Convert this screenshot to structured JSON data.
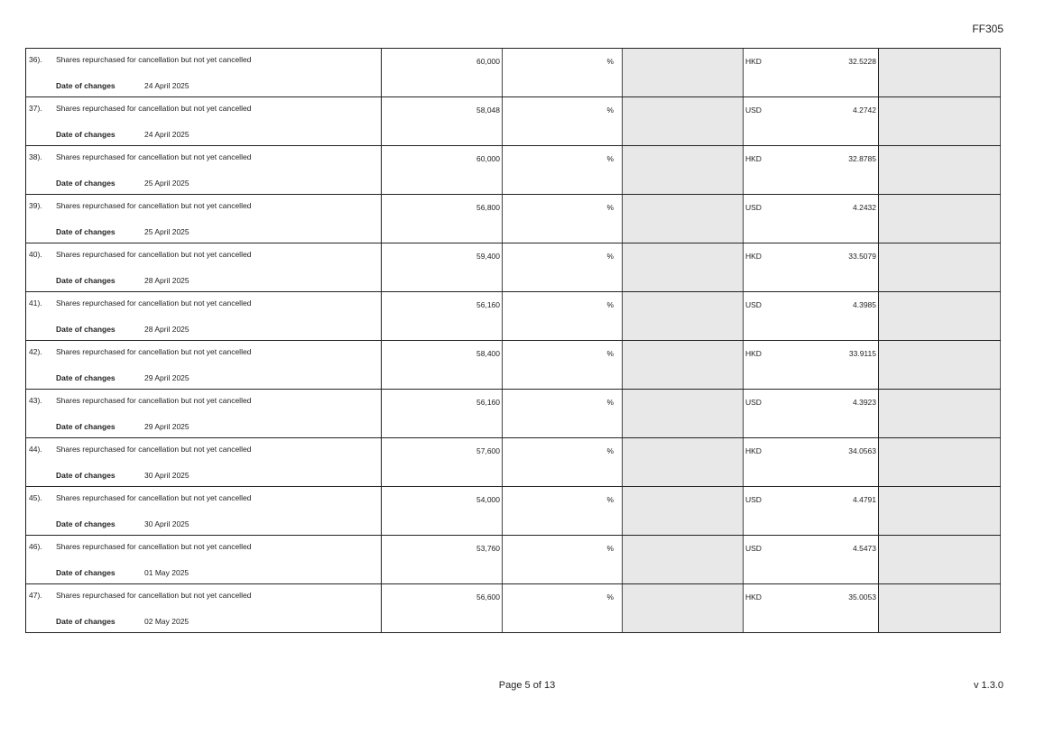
{
  "form_code": "FF305",
  "date_label": "Date of changes",
  "percent_symbol": "%",
  "rows": [
    {
      "no": "36).",
      "desc": "Shares repurchased for cancellation but not yet cancelled",
      "date": "24 April 2025",
      "shares": "60,000",
      "currency": "HKD",
      "price": "32.5228"
    },
    {
      "no": "37).",
      "desc": "Shares repurchased for cancellation but not yet cancelled",
      "date": "24 April 2025",
      "shares": "58,048",
      "currency": "USD",
      "price": "4.2742"
    },
    {
      "no": "38).",
      "desc": "Shares repurchased for cancellation but not yet cancelled",
      "date": "25 April 2025",
      "shares": "60,000",
      "currency": "HKD",
      "price": "32.8785"
    },
    {
      "no": "39).",
      "desc": "Shares repurchased for cancellation but not yet cancelled",
      "date": "25 April 2025",
      "shares": "56,800",
      "currency": "USD",
      "price": "4.2432"
    },
    {
      "no": "40).",
      "desc": "Shares repurchased for cancellation but not yet cancelled",
      "date": "28 April 2025",
      "shares": "59,400",
      "currency": "HKD",
      "price": "33.5079"
    },
    {
      "no": "41).",
      "desc": "Shares repurchased for cancellation but not yet cancelled",
      "date": "28 April 2025",
      "shares": "56,160",
      "currency": "USD",
      "price": "4.3985"
    },
    {
      "no": "42).",
      "desc": "Shares repurchased for cancellation but not yet cancelled",
      "date": "29 April 2025",
      "shares": "58,400",
      "currency": "HKD",
      "price": "33.9115"
    },
    {
      "no": "43).",
      "desc": "Shares repurchased for cancellation but not yet cancelled",
      "date": "29 April 2025",
      "shares": "56,160",
      "currency": "USD",
      "price": "4.3923"
    },
    {
      "no": "44).",
      "desc": "Shares repurchased for cancellation but not yet cancelled",
      "date": "30 April 2025",
      "shares": "57,600",
      "currency": "HKD",
      "price": "34.0563"
    },
    {
      "no": "45).",
      "desc": "Shares repurchased for cancellation but not yet cancelled",
      "date": "30 April 2025",
      "shares": "54,000",
      "currency": "USD",
      "price": "4.4791"
    },
    {
      "no": "46).",
      "desc": "Shares repurchased for cancellation but not yet cancelled",
      "date": "01 May 2025",
      "shares": "53,760",
      "currency": "USD",
      "price": "4.5473"
    },
    {
      "no": "47).",
      "desc": "Shares repurchased for cancellation but not yet cancelled",
      "date": "02 May 2025",
      "shares": "56,600",
      "currency": "HKD",
      "price": "35.0053"
    }
  ],
  "footer": {
    "page": "Page 5 of 13",
    "version": "v 1.3.0"
  }
}
